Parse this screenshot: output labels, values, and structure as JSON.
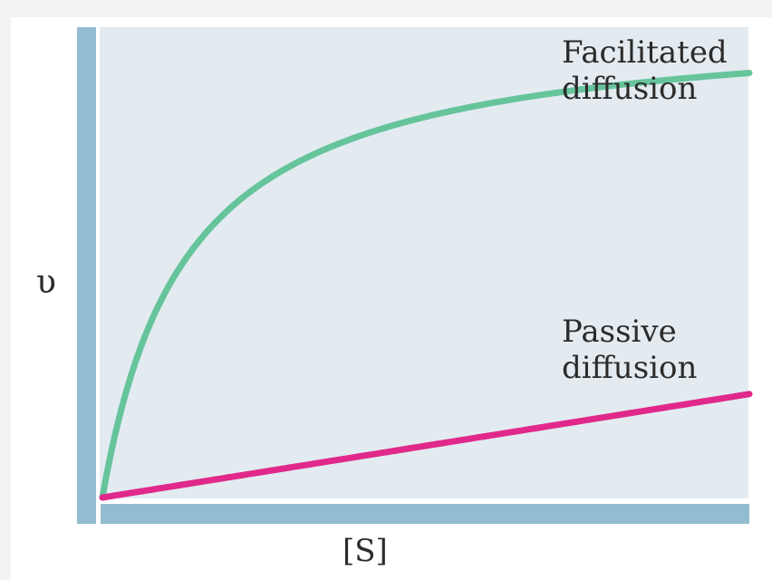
{
  "chart_data": {
    "type": "line",
    "title": "",
    "xlabel": "[S]",
    "ylabel": "υ",
    "xlim": [
      0,
      10
    ],
    "ylim": [
      0,
      10
    ],
    "grid": false,
    "series": [
      {
        "name": "Facilitated diffusion",
        "label_lines": [
          "Facilitated",
          "diffusion"
        ],
        "color": "#66c49b",
        "kind": "saturation",
        "vmax": 10.2,
        "km": 1.3
      },
      {
        "name": "Passive diffusion",
        "label_lines": [
          "Passive",
          "diffusion"
        ],
        "color": "#e0298a",
        "kind": "linear",
        "slope": 0.22
      }
    ],
    "colors": {
      "plot_background": "#e3ebf1",
      "axis_bar": "#94bcd1"
    }
  }
}
